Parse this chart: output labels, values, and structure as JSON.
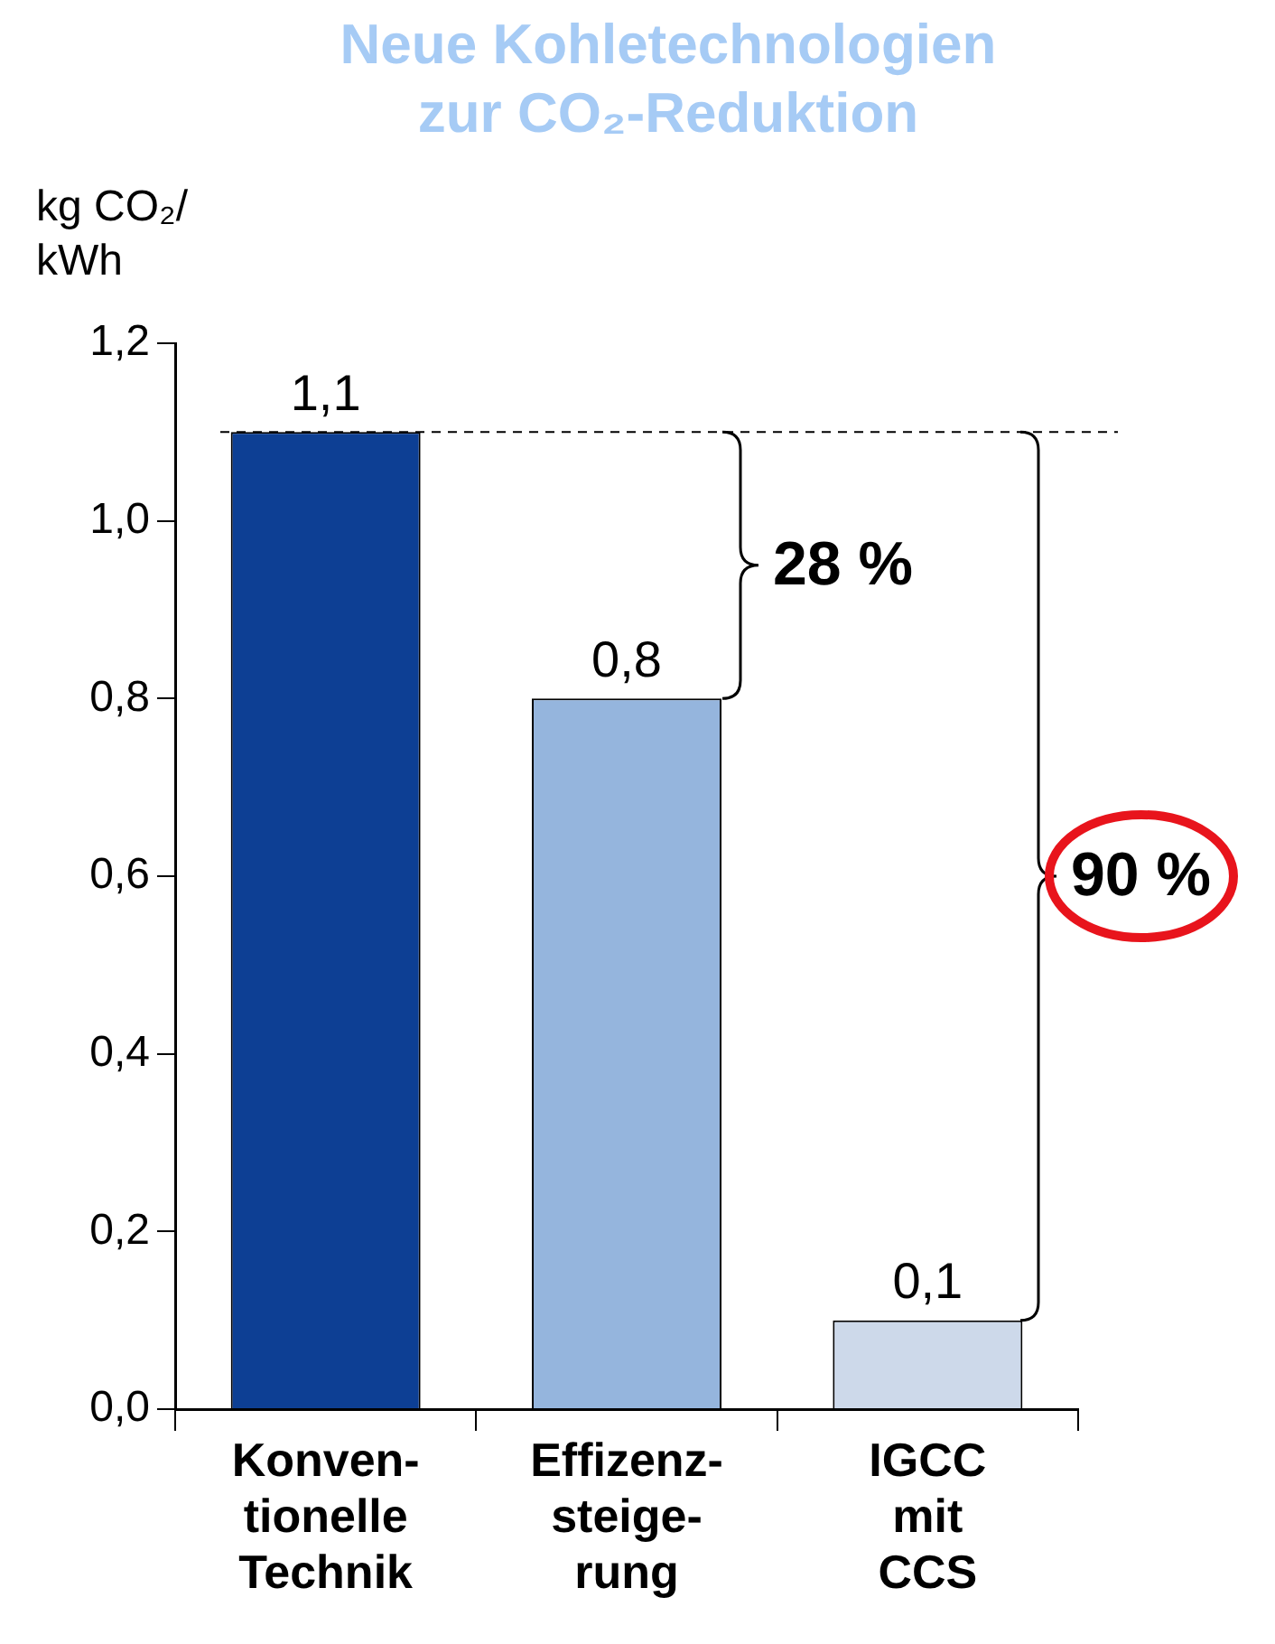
{
  "chart_data": {
    "type": "bar",
    "title": "Neue Kohletechnologien\nzur CO₂-Reduktion",
    "ylabel": "kg CO₂/\nkWh",
    "categories": [
      "Konven-\ntionelle\nTechnik",
      "Effizenz-\nsteige-\nrung",
      "IGCC\nmit\nCCS"
    ],
    "values": [
      1.1,
      0.8,
      0.1
    ],
    "colors": [
      "#0d3f94",
      "#95b5dd",
      "#cdd9ea"
    ],
    "value_labels": [
      "1,1",
      "0,8",
      "0,1"
    ],
    "ylim": [
      0,
      1.2
    ],
    "yticks": [
      {
        "value": 0,
        "label": "0,0"
      },
      {
        "value": 0.2,
        "label": "0,2"
      },
      {
        "value": 0.4,
        "label": "0,4"
      },
      {
        "value": 0.6,
        "label": "0,6"
      },
      {
        "value": 0.8,
        "label": "0,8"
      },
      {
        "value": 1.0,
        "label": "1,0"
      },
      {
        "value": 1.2,
        "label": "1,2"
      }
    ],
    "ref_lines": [
      {
        "axis": "y",
        "value": 1.1,
        "line_style": "dashed",
        "color": "#000000"
      }
    ],
    "annotations": [
      "28 %",
      "90 %"
    ],
    "grid": false,
    "legend": false
  }
}
